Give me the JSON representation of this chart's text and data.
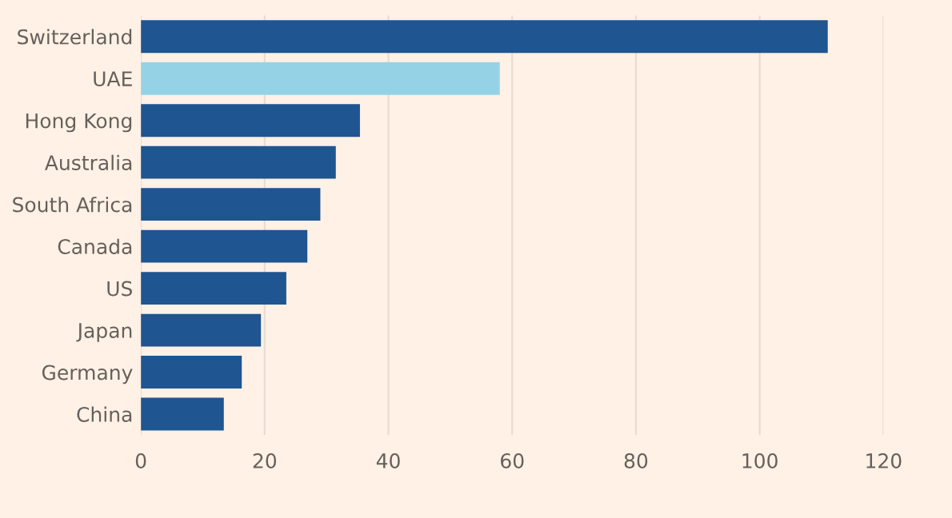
{
  "chart_data": {
    "type": "bar",
    "orientation": "horizontal",
    "categories": [
      "Switzerland",
      "UAE",
      "Hong Kong",
      "Australia",
      "South Africa",
      "Canada",
      "US",
      "Japan",
      "Germany",
      "China"
    ],
    "values": [
      111,
      58,
      35.4,
      31.5,
      29,
      26.9,
      23.5,
      19.4,
      16.3,
      13.4
    ],
    "colors": [
      "#1f5590",
      "#96d2e6",
      "#1f5590",
      "#1f5590",
      "#1f5590",
      "#1f5590",
      "#1f5590",
      "#1f5590",
      "#1f5590",
      "#1f5590"
    ],
    "xlim": [
      0,
      120
    ],
    "xticks": [
      0,
      20,
      40,
      60,
      80,
      100,
      120
    ],
    "grid": "x"
  }
}
